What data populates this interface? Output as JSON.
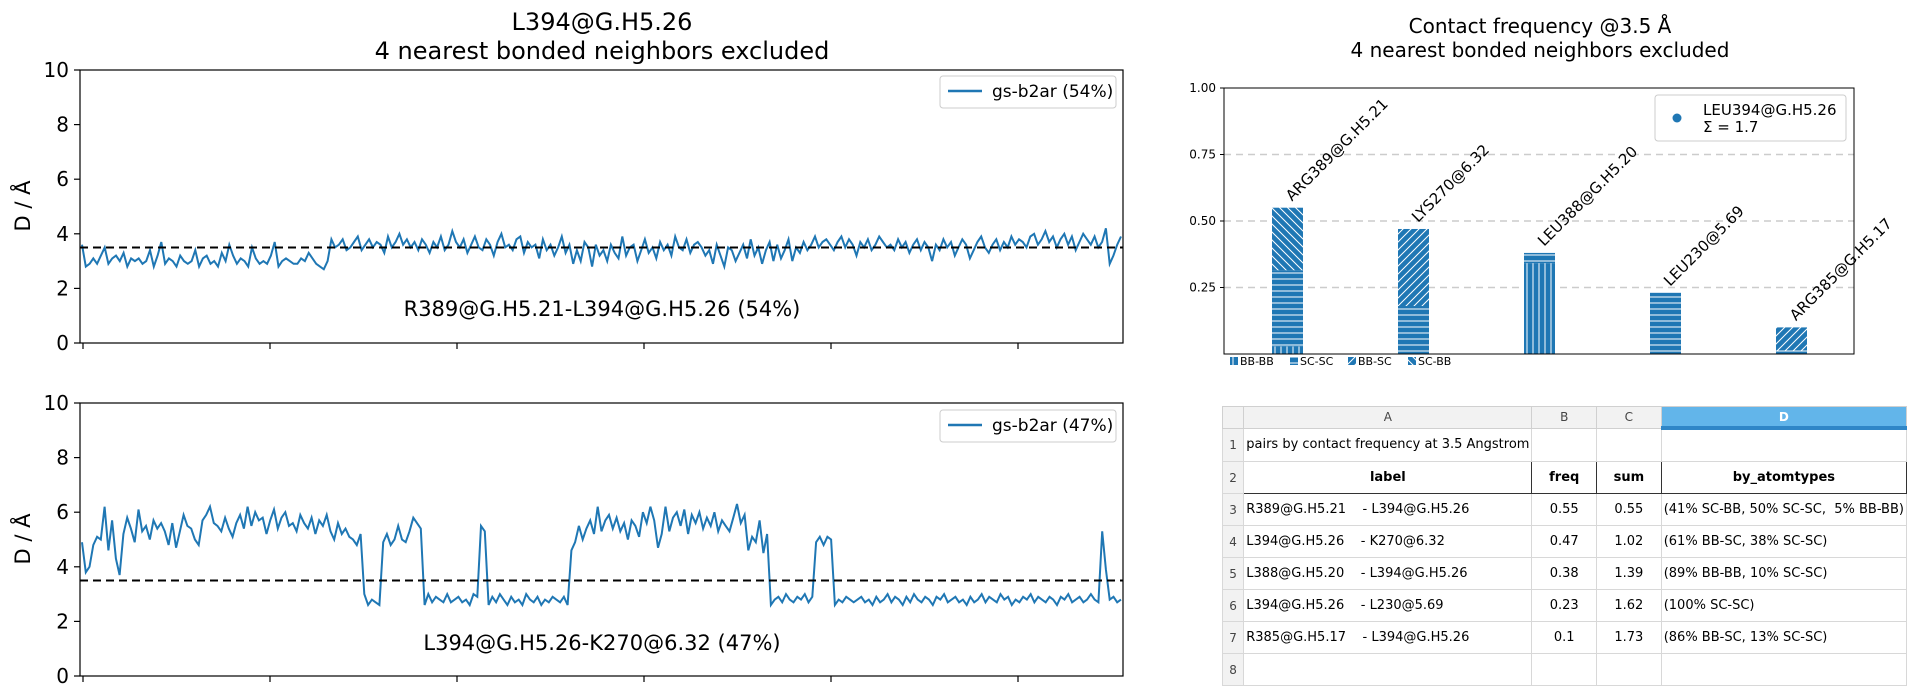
{
  "chart_data": [
    {
      "type": "line",
      "title": "L394@G.H5.26\n4 nearest bonded neighbors excluded",
      "ylabel": "D / Å",
      "ylim": [
        0,
        10
      ],
      "yticks": [
        0,
        2,
        4,
        6,
        8,
        10
      ],
      "threshold": 3.5,
      "annotation": "R389@G.H5.21-L394@G.H5.26 (54%)",
      "legend": "top-right",
      "series": [
        {
          "name": "gs-b2ar (54%)",
          "values": [
            3.6,
            2.8,
            2.9,
            3.1,
            2.9,
            3.2,
            3.5,
            2.9,
            3.1,
            3.2,
            3.0,
            3.3,
            2.8,
            3.1,
            3.0,
            3.1,
            2.9,
            3.0,
            3.4,
            2.8,
            3.2,
            3.7,
            2.9,
            3.1,
            3.0,
            2.8,
            3.2,
            3.0,
            2.9,
            3.0,
            3.4,
            2.8,
            3.1,
            3.2,
            2.9,
            3.0,
            2.8,
            3.3,
            3.0,
            3.6,
            3.2,
            2.9,
            3.1,
            3.0,
            2.8,
            3.5,
            3.1,
            2.9,
            3.0,
            2.9,
            3.2,
            3.7,
            2.8,
            3.0,
            3.1,
            3.0,
            2.9,
            2.9,
            3.1,
            3.0,
            3.3,
            3.1,
            2.9,
            2.8,
            2.7,
            3.0,
            3.8,
            3.5,
            3.6,
            3.8,
            3.4,
            3.5,
            3.7,
            3.9,
            3.4,
            3.6,
            3.8,
            3.5,
            3.7,
            3.6,
            3.3,
            3.9,
            3.5,
            3.7,
            4.0,
            3.6,
            3.8,
            3.5,
            3.7,
            3.4,
            3.8,
            3.6,
            3.3,
            3.7,
            3.5,
            3.9,
            3.4,
            3.6,
            4.1,
            3.7,
            3.5,
            3.8,
            3.3,
            3.6,
            3.9,
            3.5,
            3.4,
            3.8,
            3.6,
            3.2,
            3.7,
            4.0,
            3.5,
            3.6,
            3.4,
            3.8,
            3.9,
            3.3,
            3.7,
            3.5,
            3.6,
            3.1,
            3.8,
            3.4,
            3.6,
            3.2,
            3.5,
            3.9,
            3.3,
            3.6,
            2.9,
            3.4,
            3.0,
            3.7,
            3.5,
            2.8,
            3.6,
            3.2,
            3.4,
            3.0,
            3.6,
            3.3,
            3.1,
            3.9,
            3.2,
            3.5,
            3.6,
            3.0,
            3.4,
            3.8,
            3.3,
            3.5,
            3.1,
            3.7,
            3.4,
            3.6,
            3.2,
            3.9,
            3.5,
            3.4,
            3.8,
            3.3,
            3.6,
            3.7,
            3.5,
            3.2,
            3.4,
            2.9,
            3.6,
            3.2,
            2.8,
            3.5,
            3.4,
            3.0,
            3.3,
            3.6,
            3.1,
            3.8,
            3.2,
            3.5,
            2.9,
            3.4,
            3.7,
            3.0,
            3.6,
            3.1,
            3.4,
            3.8,
            3.0,
            3.5,
            3.3,
            3.7,
            3.4,
            3.6,
            3.9,
            3.5,
            3.7,
            3.8,
            3.6,
            3.4,
            3.7,
            3.9,
            3.5,
            3.8,
            3.6,
            3.2,
            3.7,
            3.5,
            3.8,
            3.4,
            3.6,
            3.9,
            3.7,
            3.5,
            3.6,
            3.4,
            3.8,
            3.5,
            3.7,
            3.3,
            3.6,
            3.8,
            3.4,
            3.7,
            3.5,
            3.0,
            3.6,
            3.4,
            3.8,
            3.5,
            3.7,
            3.2,
            3.5,
            3.8,
            3.6,
            3.1,
            3.4,
            3.7,
            3.9,
            3.5,
            3.3,
            3.6,
            3.8,
            3.4,
            3.7,
            3.5,
            3.9,
            3.6,
            3.8,
            3.7,
            3.5,
            3.9,
            4.0,
            3.6,
            3.8,
            4.1,
            3.7,
            3.9,
            3.5,
            3.8,
            4.0,
            3.6,
            3.9,
            3.4,
            3.7,
            4.0,
            3.8,
            3.6,
            3.9,
            3.5,
            3.7,
            4.2,
            2.9,
            3.2,
            3.6,
            3.9
          ]
        }
      ]
    },
    {
      "type": "line",
      "ylabel": "D / Å",
      "ylim": [
        0,
        10
      ],
      "yticks": [
        0,
        2,
        4,
        6,
        8,
        10
      ],
      "threshold": 3.5,
      "annotation": "L394@G.H5.26-K270@6.32 (47%)",
      "legend": "top-right",
      "series": [
        {
          "name": "gs-b2ar (47%)",
          "values": [
            4.9,
            3.8,
            4.0,
            4.8,
            5.1,
            5.0,
            6.2,
            4.6,
            5.7,
            4.3,
            3.7,
            5.2,
            5.8,
            5.4,
            4.9,
            6.1,
            5.3,
            5.5,
            5.0,
            5.7,
            5.4,
            5.6,
            5.3,
            4.8,
            5.6,
            4.7,
            5.3,
            5.9,
            5.5,
            5.4,
            5.0,
            4.8,
            5.7,
            5.9,
            6.2,
            5.6,
            5.5,
            5.3,
            5.8,
            5.4,
            5.1,
            5.6,
            5.9,
            5.4,
            6.2,
            5.5,
            6.0,
            5.7,
            5.8,
            5.2,
            5.7,
            6.1,
            5.4,
            5.8,
            6.0,
            5.5,
            5.6,
            5.3,
            5.9,
            5.6,
            5.4,
            5.8,
            5.2,
            5.7,
            5.5,
            5.9,
            5.3,
            5.0,
            5.6,
            5.2,
            5.4,
            5.1,
            5.0,
            4.8,
            5.2,
            3.0,
            2.6,
            2.8,
            2.7,
            2.6,
            4.9,
            5.2,
            4.8,
            5.0,
            5.5,
            5.0,
            4.9,
            5.3,
            5.8,
            5.6,
            5.4,
            2.6,
            3.0,
            2.7,
            2.9,
            2.8,
            2.7,
            3.0,
            2.7,
            2.8,
            2.9,
            2.7,
            2.8,
            2.6,
            3.0,
            2.9,
            5.5,
            5.3,
            2.6,
            2.9,
            2.7,
            3.0,
            2.8,
            2.6,
            2.9,
            2.7,
            2.8,
            2.6,
            3.0,
            2.8,
            2.7,
            2.9,
            2.6,
            2.8,
            2.7,
            2.9,
            2.8,
            2.7,
            2.9,
            2.6,
            4.6,
            4.9,
            5.5,
            5.0,
            5.4,
            5.7,
            5.2,
            6.2,
            5.3,
            5.7,
            5.9,
            5.4,
            5.8,
            5.3,
            5.6,
            5.0,
            5.7,
            5.5,
            5.1,
            6.0,
            5.6,
            6.2,
            5.7,
            4.7,
            5.2,
            6.2,
            5.3,
            5.8,
            6.0,
            5.5,
            6.1,
            5.2,
            5.9,
            5.6,
            6.0,
            5.4,
            5.8,
            5.5,
            6.0,
            5.3,
            5.7,
            5.5,
            5.3,
            5.8,
            6.3,
            5.6,
            5.9,
            4.6,
            5.1,
            4.9,
            5.7,
            4.5,
            5.2,
            2.6,
            2.8,
            2.9,
            2.7,
            3.0,
            2.8,
            2.7,
            2.9,
            2.8,
            3.0,
            2.7,
            2.9,
            4.9,
            5.1,
            4.8,
            5.1,
            5.0,
            2.6,
            2.8,
            2.7,
            2.9,
            2.8,
            2.7,
            2.8,
            2.9,
            2.7,
            2.8,
            2.6,
            2.9,
            2.7,
            2.8,
            3.0,
            2.7,
            2.9,
            2.8,
            2.6,
            2.9,
            2.7,
            3.0,
            2.8,
            2.7,
            2.9,
            2.8,
            2.6,
            2.9,
            2.8,
            3.0,
            2.7,
            2.8,
            2.9,
            2.7,
            2.8,
            2.6,
            2.9,
            2.7,
            2.8,
            3.0,
            2.7,
            2.9,
            2.8,
            2.7,
            3.0,
            2.8,
            2.9,
            2.6,
            2.8,
            2.7,
            2.9,
            2.8,
            3.0,
            2.7,
            2.9,
            2.8,
            2.7,
            2.9,
            2.8,
            2.6,
            2.9,
            2.8,
            3.0,
            2.7,
            2.8,
            2.9,
            2.7,
            2.8,
            3.0,
            2.8,
            2.7,
            5.3,
            3.9,
            2.8,
            2.9,
            2.7,
            2.8
          ]
        }
      ]
    },
    {
      "type": "bar",
      "title": "Contact frequency @3.5 Å\n4 nearest bonded neighbors excluded",
      "categories": [
        "ARG389@G.H5.21",
        "LYS270@6.32",
        "LEU388@G.H5.20",
        "LEU230@5.69",
        "ARG385@G.H5.17"
      ],
      "values": [
        0.55,
        0.47,
        0.38,
        0.23,
        0.1
      ],
      "composition": [
        {
          "BB-BB": 0.05,
          "SC-SC": 0.5,
          "BB-SC": 0,
          "SC-BB": 0.41
        },
        {
          "BB-BB": 0,
          "SC-SC": 0.38,
          "BB-SC": 0.61,
          "SC-BB": 0
        },
        {
          "BB-BB": 0.89,
          "SC-SC": 0.1,
          "BB-SC": 0,
          "SC-BB": 0
        },
        {
          "BB-BB": 0,
          "SC-SC": 1.0,
          "BB-SC": 0,
          "SC-BB": 0
        },
        {
          "BB-BB": 0,
          "SC-SC": 0.13,
          "BB-SC": 0.86,
          "SC-BB": 0
        }
      ],
      "yticks": [
        "0.25",
        "0.50",
        "0.75",
        "1.00"
      ],
      "ylim": [
        0,
        1.0
      ],
      "grid": "horizontal-dashed",
      "legend": {
        "label": "LEU394@G.H5.26",
        "sum": "Σ = 1.7",
        "placement": "top-right"
      },
      "bottom_legend": [
        "BB-BB",
        "SC-SC",
        "BB-SC",
        "SC-BB"
      ]
    }
  ],
  "spreadsheet": {
    "columns": [
      "A",
      "B",
      "C",
      "D"
    ],
    "active_column": "D",
    "rows": [
      {
        "n": "1",
        "cells": [
          "pairs by contact frequency at 3.5 Angstrom",
          "",
          "",
          ""
        ]
      },
      {
        "n": "2",
        "cells": [
          "label",
          "freq",
          "sum",
          "by_atomtypes"
        ]
      },
      {
        "n": "3",
        "cells": [
          "R389@G.H5.21    - L394@G.H5.26",
          "0.55",
          "0.55",
          "(41% SC-BB, 50% SC-SC,  5% BB-BB)"
        ]
      },
      {
        "n": "4",
        "cells": [
          "L394@G.H5.26    - K270@6.32",
          "0.47",
          "1.02",
          "(61% BB-SC, 38% SC-SC)"
        ]
      },
      {
        "n": "5",
        "cells": [
          "L388@G.H5.20    - L394@G.H5.26",
          "0.38",
          "1.39",
          "(89% BB-BB, 10% SC-SC)"
        ]
      },
      {
        "n": "6",
        "cells": [
          "L394@G.H5.26    - L230@5.69",
          "0.23",
          "1.62",
          "(100% SC-SC)"
        ]
      },
      {
        "n": "7",
        "cells": [
          "R385@G.H5.17    - L394@G.H5.26",
          "0.1",
          "1.73",
          "(86% BB-SC, 13% SC-SC)"
        ]
      },
      {
        "n": "8",
        "cells": [
          "",
          "",
          "",
          ""
        ]
      }
    ]
  },
  "colors": {
    "line": "#1f77b4",
    "bar": "#1f77b4",
    "threshold": "#000000",
    "grid": "#cccccc",
    "active_header": "#62b5ea"
  }
}
